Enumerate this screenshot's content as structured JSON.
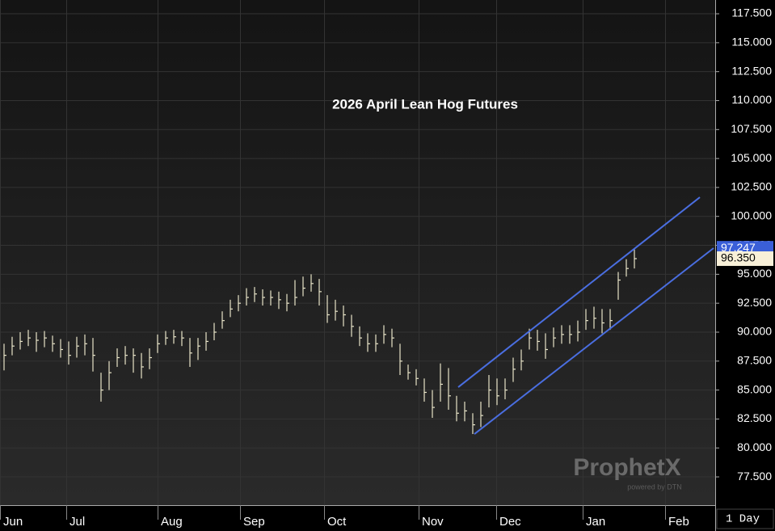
{
  "chart_data": {
    "type": "ohlc",
    "title": "2026 April Lean Hog Futures",
    "color": "#e8e4c8",
    "ylim": [
      75.06,
      118.69
    ],
    "yticks": [
      {
        "value": 77.5,
        "label": "77.500"
      },
      {
        "value": 80,
        "label": "80.000"
      },
      {
        "value": 82.5,
        "label": "82.500"
      },
      {
        "value": 85,
        "label": "85.000"
      },
      {
        "value": 87.5,
        "label": "87.500"
      },
      {
        "value": 90,
        "label": "90.000"
      },
      {
        "value": 92.5,
        "label": "92.500"
      },
      {
        "value": 95,
        "label": "95.000"
      },
      {
        "value": 97.5,
        "label": "97.500"
      },
      {
        "value": 100,
        "label": "100.000"
      },
      {
        "value": 102.5,
        "label": "102.500"
      },
      {
        "value": 105,
        "label": "105.000"
      },
      {
        "value": 107.5,
        "label": "107.500"
      },
      {
        "value": 110,
        "label": "110.000"
      },
      {
        "value": 112.5,
        "label": "112.500"
      },
      {
        "value": 115,
        "label": "115.000"
      },
      {
        "value": 117.5,
        "label": "117.500"
      }
    ],
    "categories": [
      "Jun",
      "Jul",
      "Aug",
      "Sep",
      "Oct",
      "Nov",
      "Dec",
      "Jan",
      "Feb"
    ],
    "grid": true,
    "high": [
      89,
      89.6,
      90,
      90.2,
      90,
      90.1,
      89.7,
      89.4,
      89.2,
      89.6,
      89.8,
      89.5,
      86.5,
      87.5,
      88.6,
      88.8,
      88.6,
      88.2,
      88.6,
      89.8,
      90.1,
      90.2,
      90.1,
      89.5,
      89.5,
      90,
      90.8,
      91.8,
      92.8,
      93.2,
      93.8,
      93.9,
      93.7,
      93.6,
      93.5,
      93.3,
      94.5,
      94.8,
      95,
      94.6,
      93.2,
      92.8,
      92.3,
      91.5,
      90.5,
      89.9,
      89.8,
      90.6,
      90.3,
      89,
      87.2,
      86.8,
      86,
      85,
      87.3,
      86.9,
      84.5,
      84,
      83,
      84,
      86.3,
      86,
      86,
      87.8,
      88.5,
      90.3,
      90.2,
      89.9,
      90.4,
      90.6,
      90.6,
      91,
      92,
      92.2,
      92,
      92,
      95.2,
      96.3,
      97.2
    ],
    "low": [
      86.7,
      88,
      88.5,
      88.8,
      88.3,
      88.7,
      88.3,
      87.8,
      87.2,
      87.8,
      88,
      86.6,
      84,
      85,
      87,
      87.2,
      86.5,
      86,
      86.8,
      88.2,
      88.9,
      89,
      88.8,
      87,
      87.6,
      88.4,
      89.3,
      90.3,
      91.3,
      91.8,
      92.3,
      92.6,
      92.3,
      92.3,
      92,
      91.8,
      92.3,
      93.1,
      93.5,
      92.3,
      90.8,
      91,
      90.5,
      89.6,
      88.8,
      88.3,
      88.3,
      89,
      88.7,
      86.3,
      85.9,
      85.4,
      84,
      82.6,
      84,
      83.3,
      82.3,
      82.3,
      81.2,
      81.8,
      83.5,
      83.7,
      84.2,
      85.7,
      86.7,
      88.5,
      88.4,
      87.7,
      88.7,
      89,
      89,
      89.2,
      90.2,
      90.3,
      89.9,
      90.2,
      92.8,
      94.8,
      95.5
    ],
    "close": [
      88,
      88.8,
      89.2,
      89.5,
      89.3,
      89.5,
      89,
      88.5,
      88,
      88.8,
      89,
      88,
      85,
      86.5,
      87.8,
      88,
      88,
      87,
      87.8,
      89,
      89.5,
      89.6,
      89.5,
      88.2,
      88.8,
      89.2,
      90,
      91,
      92,
      92.5,
      93,
      93.3,
      93,
      93,
      92.8,
      92.5,
      93,
      93.8,
      94.2,
      93.5,
      91.5,
      91.8,
      91.5,
      90.5,
      89.5,
      89,
      89,
      89.8,
      89.5,
      87.5,
      86.5,
      86,
      84.8,
      83.5,
      85.5,
      84.5,
      83,
      83.2,
      82,
      82.8,
      85,
      84.5,
      85,
      86.8,
      87.5,
      89.5,
      89.2,
      88.5,
      89.5,
      89.8,
      89.8,
      90,
      91,
      91.2,
      90.8,
      91,
      94.5,
      95.5,
      96.35
    ],
    "trend_lines": [
      {
        "color": "#4a6ee0",
        "values": [
          85.25,
          101.65
        ]
      },
      {
        "color": "#4a6ee0",
        "values": [
          81.2,
          97.26
        ]
      }
    ],
    "price_labels": [
      {
        "value": 97.247,
        "label": "97.247",
        "color": "#3a5fd8"
      },
      {
        "value": 96.35,
        "label": "96.350",
        "color": "#f8f0d8"
      }
    ],
    "watermark": "ProphetX",
    "watermark_sub": "powered by DTN",
    "interval": "1 Day"
  }
}
